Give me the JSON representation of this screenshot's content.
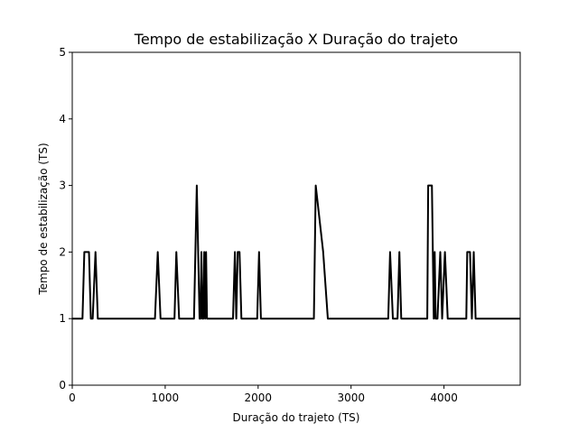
{
  "chart_data": {
    "type": "line",
    "title": "Tempo de estabilização X Duração do trajeto",
    "xlabel": "Duração do trajeto (TS)",
    "ylabel": "Tempo de estabilização (TS)",
    "xlim": [
      0,
      4820
    ],
    "ylim": [
      0,
      5
    ],
    "xticks": [
      0,
      1000,
      2000,
      3000,
      4000
    ],
    "yticks": [
      0,
      1,
      2,
      3,
      4,
      5
    ],
    "grid": false,
    "line_color": "#000000",
    "series": [
      {
        "x": [
          0,
          110,
          130,
          180,
          200,
          220,
          250,
          275,
          310,
          890,
          920,
          950,
          1100,
          1120,
          1150,
          1310,
          1340,
          1370,
          1380,
          1390,
          1400,
          1410,
          1420,
          1430,
          1440,
          1450,
          1460,
          1730,
          1750,
          1765,
          1780,
          1800,
          1820,
          1850,
          1990,
          2010,
          2030,
          2060,
          2600,
          2620,
          2700,
          2750,
          3400,
          3420,
          3450,
          3500,
          3520,
          3540,
          3570,
          3820,
          3830,
          3870,
          3890,
          3900,
          3910,
          3930,
          3960,
          3980,
          4010,
          4040,
          4060,
          4090,
          4240,
          4250,
          4280,
          4300,
          4320,
          4340,
          4360,
          4400,
          4820
        ],
        "y": [
          1,
          1,
          2,
          2,
          1,
          1,
          2,
          1,
          1,
          1,
          2,
          1,
          1,
          2,
          1,
          1,
          3,
          1,
          1,
          2,
          1,
          1,
          2,
          1,
          2,
          1,
          1,
          1,
          2,
          1,
          2,
          2,
          1,
          1,
          1,
          2,
          1,
          1,
          1,
          3,
          2,
          1,
          1,
          2,
          1,
          1,
          2,
          1,
          1,
          1,
          3,
          3,
          1,
          2,
          1,
          1,
          2,
          1,
          2,
          1,
          1,
          1,
          1,
          2,
          2,
          1,
          2,
          1,
          1,
          1,
          1
        ]
      }
    ]
  }
}
